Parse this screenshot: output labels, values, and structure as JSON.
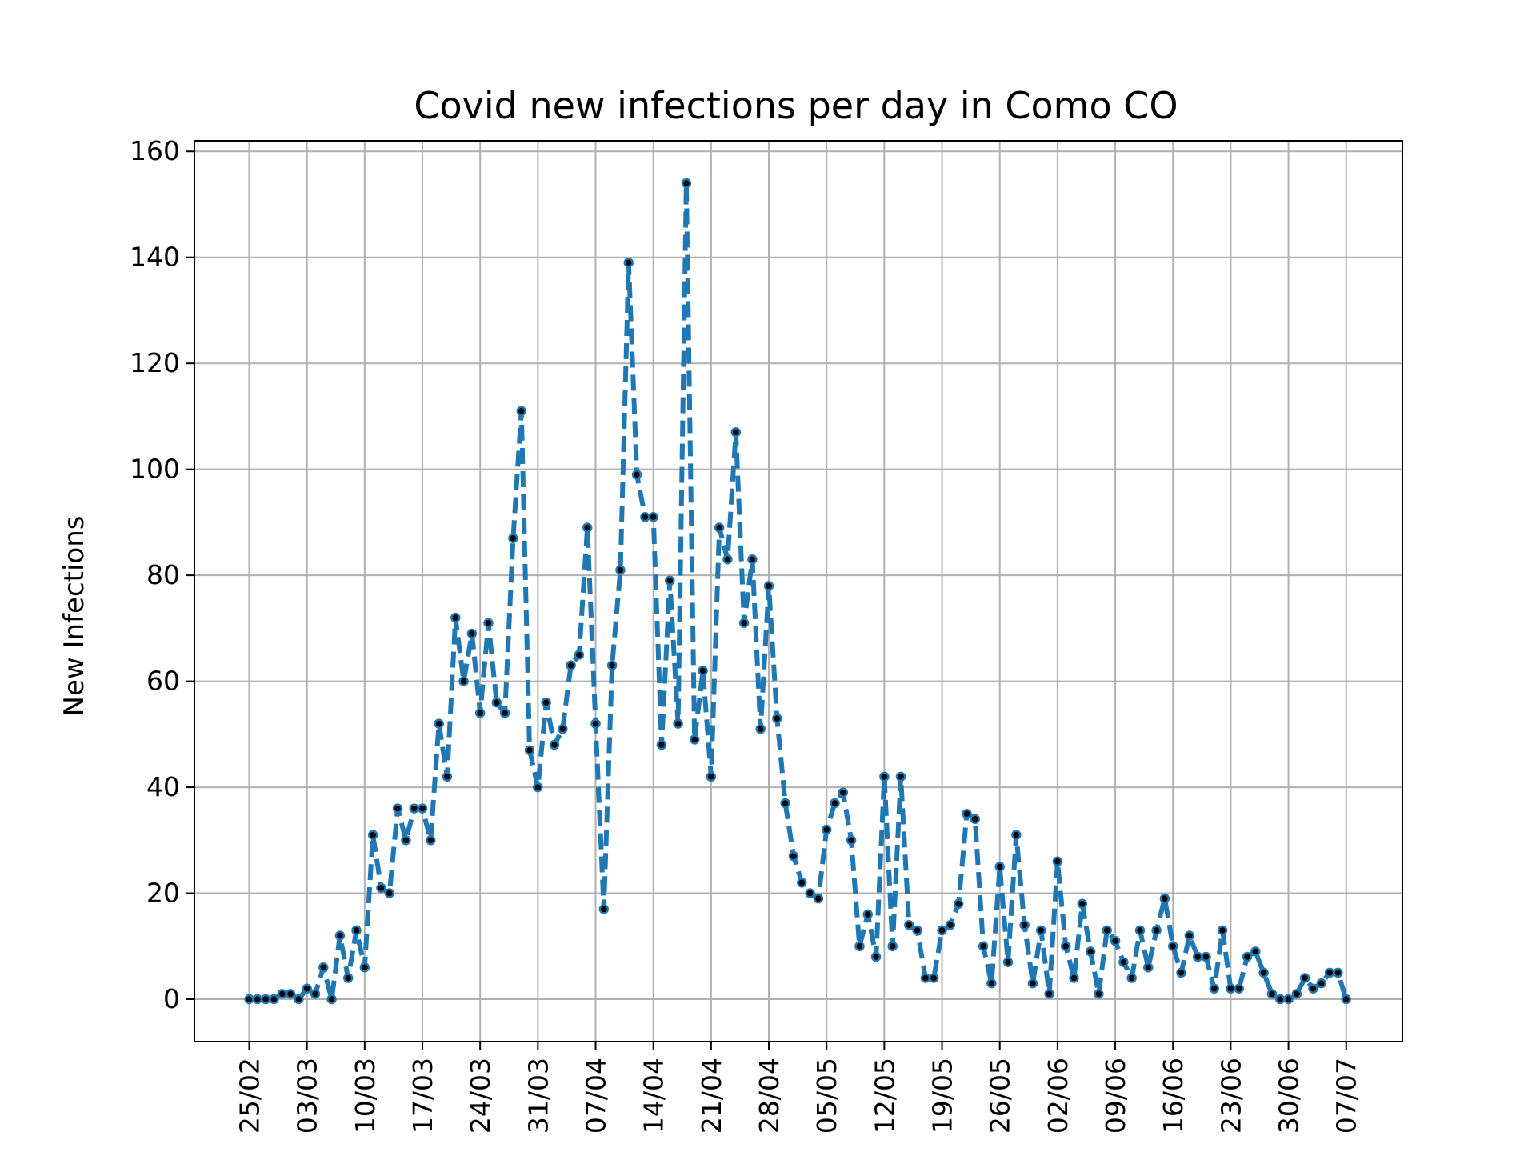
{
  "chart_data": {
    "type": "line",
    "title": "Covid new infections per day in Como CO",
    "xlabel": "",
    "ylabel": "New Infections",
    "x_start_date": "2020-02-25",
    "xticks": [
      "25/02",
      "03/03",
      "10/03",
      "17/03",
      "24/03",
      "31/03",
      "07/04",
      "14/04",
      "21/04",
      "28/04",
      "05/05",
      "12/05",
      "19/05",
      "26/05",
      "02/06",
      "09/06",
      "16/06",
      "23/06",
      "30/06",
      "07/07"
    ],
    "ylim": [
      -8,
      162
    ],
    "yticks": [
      0,
      20,
      40,
      60,
      80,
      100,
      120,
      140,
      160
    ],
    "grid": true,
    "line_color": "#1f77b4",
    "marker_color": "#000000",
    "series": [
      {
        "name": "",
        "values": [
          0,
          0,
          0,
          0,
          1,
          1,
          0,
          2,
          1,
          6,
          0,
          12,
          4,
          13,
          6,
          31,
          21,
          20,
          36,
          30,
          36,
          36,
          30,
          52,
          42,
          72,
          60,
          69,
          54,
          71,
          56,
          54,
          87,
          111,
          47,
          40,
          56,
          48,
          51,
          63,
          65,
          89,
          52,
          17,
          63,
          81,
          139,
          99,
          91,
          91,
          48,
          79,
          52,
          154,
          49,
          62,
          42,
          89,
          83,
          107,
          71,
          83,
          51,
          78,
          53,
          37,
          27,
          22,
          20,
          19,
          32,
          37,
          39,
          30,
          10,
          16,
          8,
          42,
          10,
          42,
          14,
          13,
          4,
          4,
          13,
          14,
          18,
          35,
          34,
          10,
          3,
          25,
          7,
          31,
          14,
          3,
          13,
          1,
          26,
          10,
          4,
          18,
          9,
          1,
          13,
          11,
          7,
          4,
          13,
          6,
          13,
          19,
          10,
          5,
          12,
          8,
          8,
          2,
          13,
          2,
          2,
          8,
          9,
          5,
          1,
          0,
          0,
          1,
          4,
          2,
          3,
          5,
          5,
          0
        ]
      }
    ]
  }
}
